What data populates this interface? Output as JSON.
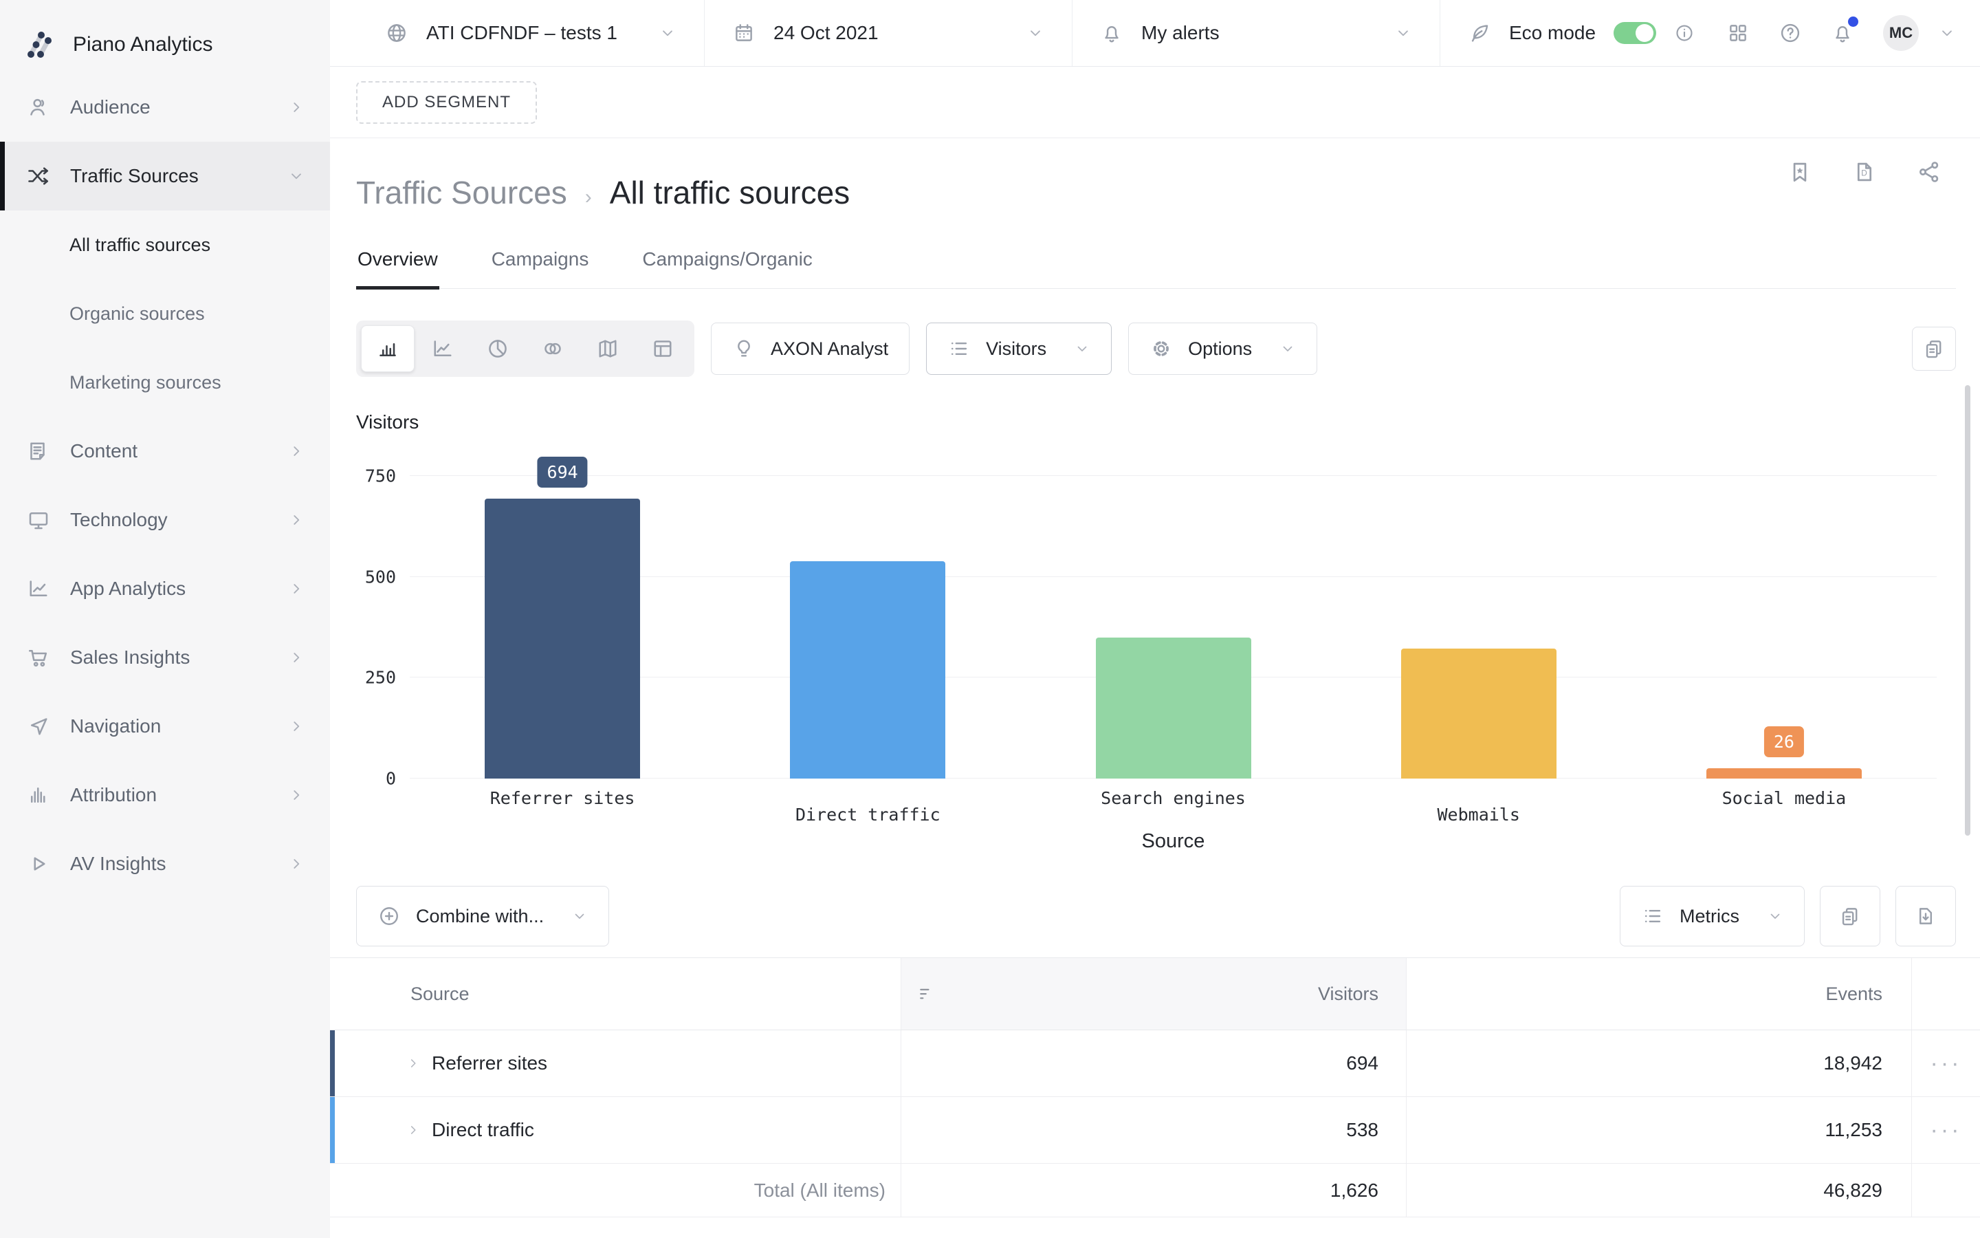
{
  "brand": {
    "name": "Piano Analytics"
  },
  "topbar": {
    "site": "ATI CDFNDF – tests 1",
    "date": "24 Oct 2021",
    "alerts": "My alerts",
    "eco_label": "Eco mode",
    "eco_enabled": true,
    "avatar_initials": "MC",
    "notification_dot_color": "#3351e5",
    "toggle_color": "#7fd190"
  },
  "sidebar": {
    "items": [
      {
        "label": "Audience"
      },
      {
        "label": "Traffic Sources"
      },
      {
        "label": "Content"
      },
      {
        "label": "Technology"
      },
      {
        "label": "App Analytics"
      },
      {
        "label": "Sales Insights"
      },
      {
        "label": "Navigation"
      },
      {
        "label": "Attribution"
      },
      {
        "label": "AV Insights"
      }
    ],
    "traffic_subitems": [
      {
        "label": "All traffic sources"
      },
      {
        "label": "Organic sources"
      },
      {
        "label": "Marketing sources"
      }
    ]
  },
  "segment": {
    "add_label": "ADD SEGMENT"
  },
  "breadcrumb": {
    "section": "Traffic Sources",
    "separator": "›",
    "page": "All traffic sources"
  },
  "tabs": [
    {
      "label": "Overview"
    },
    {
      "label": "Campaigns"
    },
    {
      "label": "Campaigns/Organic"
    }
  ],
  "toolbar": {
    "axon_label": "AXON Analyst",
    "metric_selector": "Visitors",
    "options_label": "Options"
  },
  "chart_data": {
    "type": "bar",
    "title": "Visitors",
    "xlabel": "Source",
    "ylabel": "Visitors",
    "categories": [
      "Referrer sites",
      "Direct traffic",
      "Search engines",
      "Webmails",
      "Social media"
    ],
    "values": [
      694,
      538,
      350,
      322,
      26
    ],
    "data_labels": {
      "0": "694",
      "4": "26"
    },
    "yticks": [
      0,
      250,
      500,
      750
    ],
    "ylim": [
      0,
      750
    ],
    "colors": [
      "#40587c",
      "#58a3e8",
      "#93d6a4",
      "#f0bd52",
      "#ef9356"
    ],
    "grid": "horizontal",
    "legend": "none"
  },
  "combine": {
    "label": "Combine with...",
    "metrics_label": "Metrics"
  },
  "table": {
    "columns": [
      "Source",
      "Visitors",
      "Events"
    ],
    "rows": [
      {
        "source": "Referrer sites",
        "visitors": "694",
        "events": "18,942"
      },
      {
        "source": "Direct traffic",
        "visitors": "538",
        "events": "11,253"
      }
    ],
    "total": {
      "label": "Total (All items)",
      "visitors": "1,626",
      "events": "46,829"
    },
    "row_actions": "···"
  }
}
